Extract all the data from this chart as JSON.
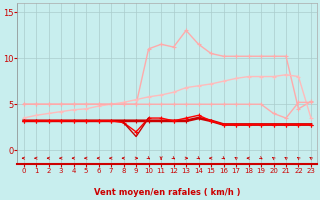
{
  "xlabel": "Vent moyen/en rafales ( km/h )",
  "xlim": [
    -0.5,
    23.5
  ],
  "ylim": [
    -1.5,
    16
  ],
  "yticks": [
    0,
    5,
    10,
    15
  ],
  "xticks": [
    0,
    1,
    2,
    3,
    4,
    5,
    6,
    7,
    8,
    9,
    10,
    11,
    12,
    13,
    14,
    15,
    16,
    17,
    18,
    19,
    20,
    21,
    22,
    23
  ],
  "bg_color": "#c8eeee",
  "grid_color": "#aacccc",
  "line_gust_max": {
    "x": [
      0,
      1,
      2,
      3,
      4,
      5,
      6,
      7,
      8,
      9,
      10,
      11,
      12,
      13,
      14,
      15,
      16,
      17,
      18,
      19,
      20,
      21,
      22,
      23
    ],
    "y": [
      5.0,
      5.0,
      5.0,
      5.0,
      5.0,
      5.0,
      5.0,
      5.0,
      5.0,
      5.0,
      11.0,
      11.5,
      11.2,
      13.0,
      11.5,
      10.5,
      10.2,
      10.2,
      10.2,
      10.2,
      10.2,
      10.2,
      4.5,
      5.3
    ],
    "color": "#ffaaaa",
    "lw": 1.0
  },
  "line_gust_trend": {
    "x": [
      0,
      1,
      2,
      3,
      4,
      5,
      6,
      7,
      8,
      9,
      10,
      11,
      12,
      13,
      14,
      15,
      16,
      17,
      18,
      19,
      20,
      21,
      22,
      23
    ],
    "y": [
      3.5,
      3.8,
      4.0,
      4.2,
      4.4,
      4.5,
      4.8,
      5.0,
      5.2,
      5.5,
      5.8,
      6.0,
      6.3,
      6.8,
      7.0,
      7.2,
      7.5,
      7.8,
      8.0,
      8.0,
      8.0,
      8.2,
      8.0,
      3.5
    ],
    "color": "#ffbbbb",
    "lw": 1.0
  },
  "line_avg_flat": {
    "x": [
      0,
      1,
      2,
      3,
      4,
      5,
      6,
      7,
      8,
      9,
      10,
      11,
      12,
      13,
      14,
      15,
      16,
      17,
      18,
      19,
      20,
      21,
      22,
      23
    ],
    "y": [
      5.0,
      5.0,
      5.0,
      5.0,
      5.0,
      5.0,
      5.0,
      5.0,
      5.0,
      5.0,
      5.0,
      5.0,
      5.0,
      5.0,
      5.0,
      5.0,
      5.0,
      5.0,
      5.0,
      5.0,
      4.0,
      3.5,
      5.2,
      5.2
    ],
    "color": "#ffaaaa",
    "lw": 1.0
  },
  "line_mean1": {
    "x": [
      0,
      1,
      2,
      3,
      4,
      5,
      6,
      7,
      8,
      9,
      10,
      11,
      12,
      13,
      14,
      15,
      16,
      17,
      18,
      19,
      20,
      21,
      22,
      23
    ],
    "y": [
      3.2,
      3.2,
      3.2,
      3.2,
      3.2,
      3.2,
      3.2,
      3.2,
      3.2,
      3.2,
      3.2,
      3.2,
      3.2,
      3.2,
      3.5,
      3.2,
      2.8,
      2.8,
      2.8,
      2.8,
      2.8,
      2.8,
      2.8,
      2.8
    ],
    "color": "#cc0000",
    "lw": 2.0
  },
  "line_mean2": {
    "x": [
      0,
      1,
      2,
      3,
      4,
      5,
      6,
      7,
      8,
      9,
      10,
      11,
      12,
      13,
      14,
      15,
      16,
      17,
      18,
      19,
      20,
      21,
      22,
      23
    ],
    "y": [
      3.2,
      3.2,
      3.2,
      3.2,
      3.2,
      3.2,
      3.2,
      3.2,
      3.0,
      2.0,
      3.5,
      3.5,
      3.2,
      3.5,
      3.8,
      3.2,
      2.8,
      2.8,
      2.8,
      2.8,
      2.8,
      2.8,
      2.8,
      2.8
    ],
    "color": "#ff0000",
    "lw": 1.0
  },
  "line_drop": {
    "x": [
      8,
      9,
      10
    ],
    "y": [
      3.0,
      1.5,
      3.5
    ],
    "color": "#cc0000",
    "lw": 1.0
  },
  "arrows": {
    "x": [
      0,
      1,
      2,
      3,
      4,
      5,
      6,
      7,
      8,
      9,
      10,
      11,
      12,
      13,
      14,
      15,
      16,
      17,
      18,
      19,
      20,
      21,
      22,
      23
    ],
    "dx": [
      -1,
      -1,
      -1,
      -1,
      -1,
      -1,
      -0.7,
      -1,
      -1,
      1,
      0.7,
      0,
      0.7,
      1,
      0.7,
      -1,
      0.7,
      -0.7,
      -1,
      0.7,
      -0.7,
      -0.7,
      -0.7,
      -0.7
    ],
    "dy": [
      0,
      0,
      0,
      0,
      0,
      0,
      0,
      0,
      0,
      0,
      -0.7,
      -1,
      -0.7,
      0,
      -0.7,
      0,
      -0.7,
      0.7,
      0,
      -0.7,
      0.7,
      0.7,
      0.7,
      0.7
    ]
  }
}
